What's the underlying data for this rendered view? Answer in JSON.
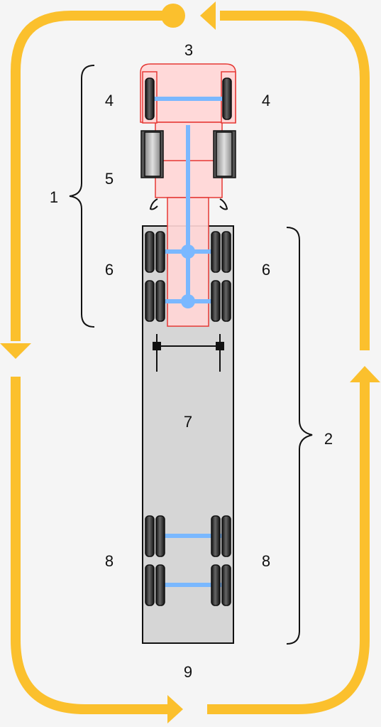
{
  "labels": {
    "tractor_group": "1",
    "trailer_group": "2",
    "front": "3",
    "steer_left": "4",
    "steer_right": "4",
    "fuel_tanks": "5",
    "drive_left": "6",
    "drive_right": "6",
    "trailer_body": "7",
    "trailer_axles_left": "8",
    "trailer_axles_right": "8",
    "rear": "9"
  },
  "colors": {
    "arrow": "#fbc02d",
    "tractor_fill": "#ffd6d6",
    "tractor_stroke": "#e53935",
    "trailer_fill": "#d6d6d6",
    "axle": "#7ab8ff",
    "tire": "#2a2a2a",
    "background": "#f5f5f5"
  }
}
